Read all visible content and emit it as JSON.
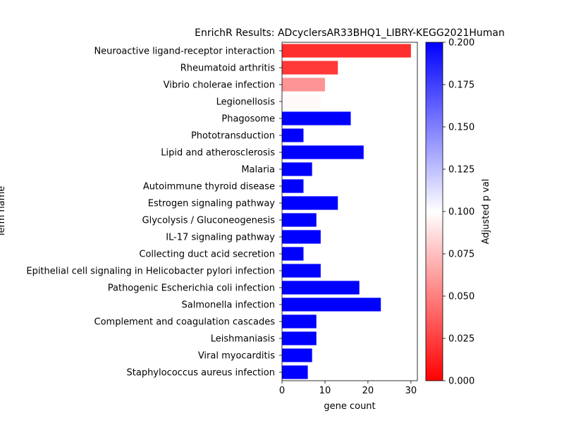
{
  "chart_data": {
    "type": "bar",
    "orientation": "horizontal",
    "title": "EnrichR Results: ADcyclersAR33BHQ1_LIBRY-KEGG2021Human",
    "xlabel": "gene count",
    "ylabel": "Term name",
    "xlim": [
      0,
      31.5
    ],
    "xticks": [
      0,
      10,
      20,
      30
    ],
    "grid": false,
    "categories": [
      "Neuroactive ligand-receptor interaction",
      "Rheumatoid arthritis",
      "Vibrio cholerae infection",
      "Legionellosis",
      "Phagosome",
      "Phototransduction",
      "Lipid and atherosclerosis",
      "Malaria",
      "Autoimmune thyroid disease",
      "Estrogen signaling pathway",
      "Glycolysis / Gluconeogenesis",
      "IL-17 signaling pathway",
      "Collecting duct acid secretion",
      "Epithelial cell signaling in Helicobacter pylori infection",
      "Pathogenic Escherichia coli infection",
      "Salmonella infection",
      "Complement and coagulation cascades",
      "Leishmaniasis",
      "Viral myocarditis",
      "Staphylococcus aureus infection"
    ],
    "values": [
      30,
      13,
      10,
      9,
      16,
      5,
      19,
      7,
      5,
      13,
      8,
      9,
      5,
      9,
      18,
      23,
      8,
      8,
      7,
      6
    ],
    "adjusted_p_values": [
      0.018,
      0.022,
      0.058,
      0.098,
      0.2,
      0.2,
      0.2,
      0.2,
      0.2,
      0.2,
      0.2,
      0.2,
      0.2,
      0.2,
      0.2,
      0.2,
      0.2,
      0.2,
      0.2,
      0.2
    ],
    "colorbar": {
      "label": "Adjusted p val",
      "range": [
        0,
        0.2
      ],
      "ticks": [
        "0.000",
        "0.025",
        "0.050",
        "0.075",
        "0.100",
        "0.125",
        "0.150",
        "0.175",
        "0.200"
      ],
      "colors": [
        "#ff0000",
        "#ffffff",
        "#0000ff"
      ]
    }
  }
}
